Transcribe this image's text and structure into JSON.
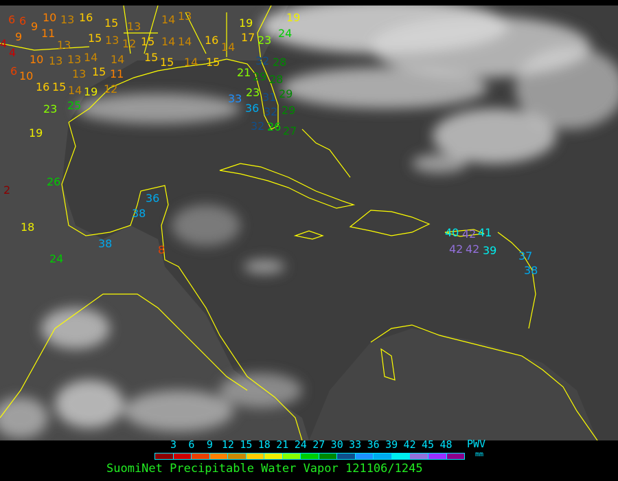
{
  "title": "SuomiNet Precipitable Water Vapor 121106/1245",
  "legend": {
    "unit_label": "PWV",
    "unit": "mm",
    "ticks": [
      "3",
      "6",
      "9",
      "12",
      "15",
      "18",
      "21",
      "24",
      "27",
      "30",
      "33",
      "36",
      "39",
      "42",
      "45",
      "48"
    ],
    "colors": [
      "#8b0000",
      "#cc0000",
      "#e84000",
      "#ff8000",
      "#cc8800",
      "#ffcc00",
      "#eeee00",
      "#88ff00",
      "#00cc00",
      "#008800",
      "#104e8b",
      "#1e90ff",
      "#00aaee",
      "#00eeee",
      "#9370db",
      "#9b30ff",
      "#8b008b"
    ]
  },
  "map": {
    "background": "satellite infrared imagery",
    "coastline_color": "#ffff00",
    "stations": [
      "6",
      "6",
      "9",
      "10",
      "13",
      "16",
      "15",
      "13",
      "14",
      "13",
      "4",
      "9",
      "11",
      "13",
      "15",
      "13",
      "12",
      "15",
      "14",
      "14",
      "16",
      "14",
      "4",
      "10",
      "13",
      "13",
      "14",
      "14",
      "15",
      "15",
      "14",
      "15",
      "6",
      "10",
      "13",
      "15",
      "11",
      "16",
      "15",
      "14",
      "19",
      "12",
      "19",
      "17",
      "23",
      "24",
      "19",
      "32",
      "21",
      "29",
      "28",
      "23",
      "31",
      "28",
      "36",
      "33",
      "32",
      "29",
      "29",
      "32",
      "26",
      "27",
      "23",
      "25",
      "19",
      "2",
      "26",
      "18",
      "24",
      "36",
      "38",
      "38",
      "8",
      "40",
      "42",
      "42",
      "42",
      "41",
      "39",
      "37",
      "38"
    ]
  }
}
